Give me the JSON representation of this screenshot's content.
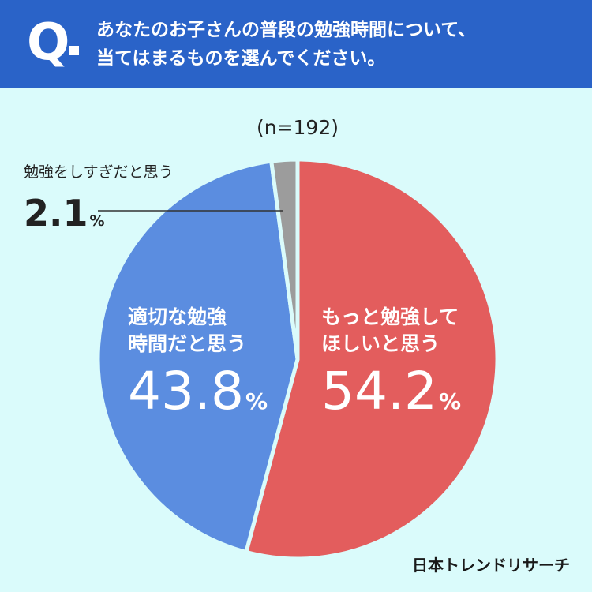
{
  "question": {
    "mark": "Q",
    "line1": "あなたのお子さんの普段の勉強時間について、",
    "line2": "当てはまるものを選んでください。"
  },
  "chart_data": {
    "type": "pie",
    "sample": "(n=192)",
    "slices": [
      {
        "label_lines": [
          "もっと勉強して",
          "ほしいと思う"
        ],
        "value": 54.2,
        "display": "54.2",
        "unit": "%",
        "color": "#e35d5d"
      },
      {
        "label_lines": [
          "適切な勉強",
          "時間だと思う"
        ],
        "value": 43.8,
        "display": "43.8",
        "unit": "%",
        "color": "#5b8de0"
      },
      {
        "label_lines": [
          "勉強をしすぎだと思う"
        ],
        "value": 2.1,
        "display": "2.1",
        "unit": "%",
        "color": "#9c9c9c"
      }
    ],
    "start_angle": "12 o'clock",
    "direction": "clockwise"
  },
  "brand": {
    "logo": "日本トレンドリサーチ"
  }
}
